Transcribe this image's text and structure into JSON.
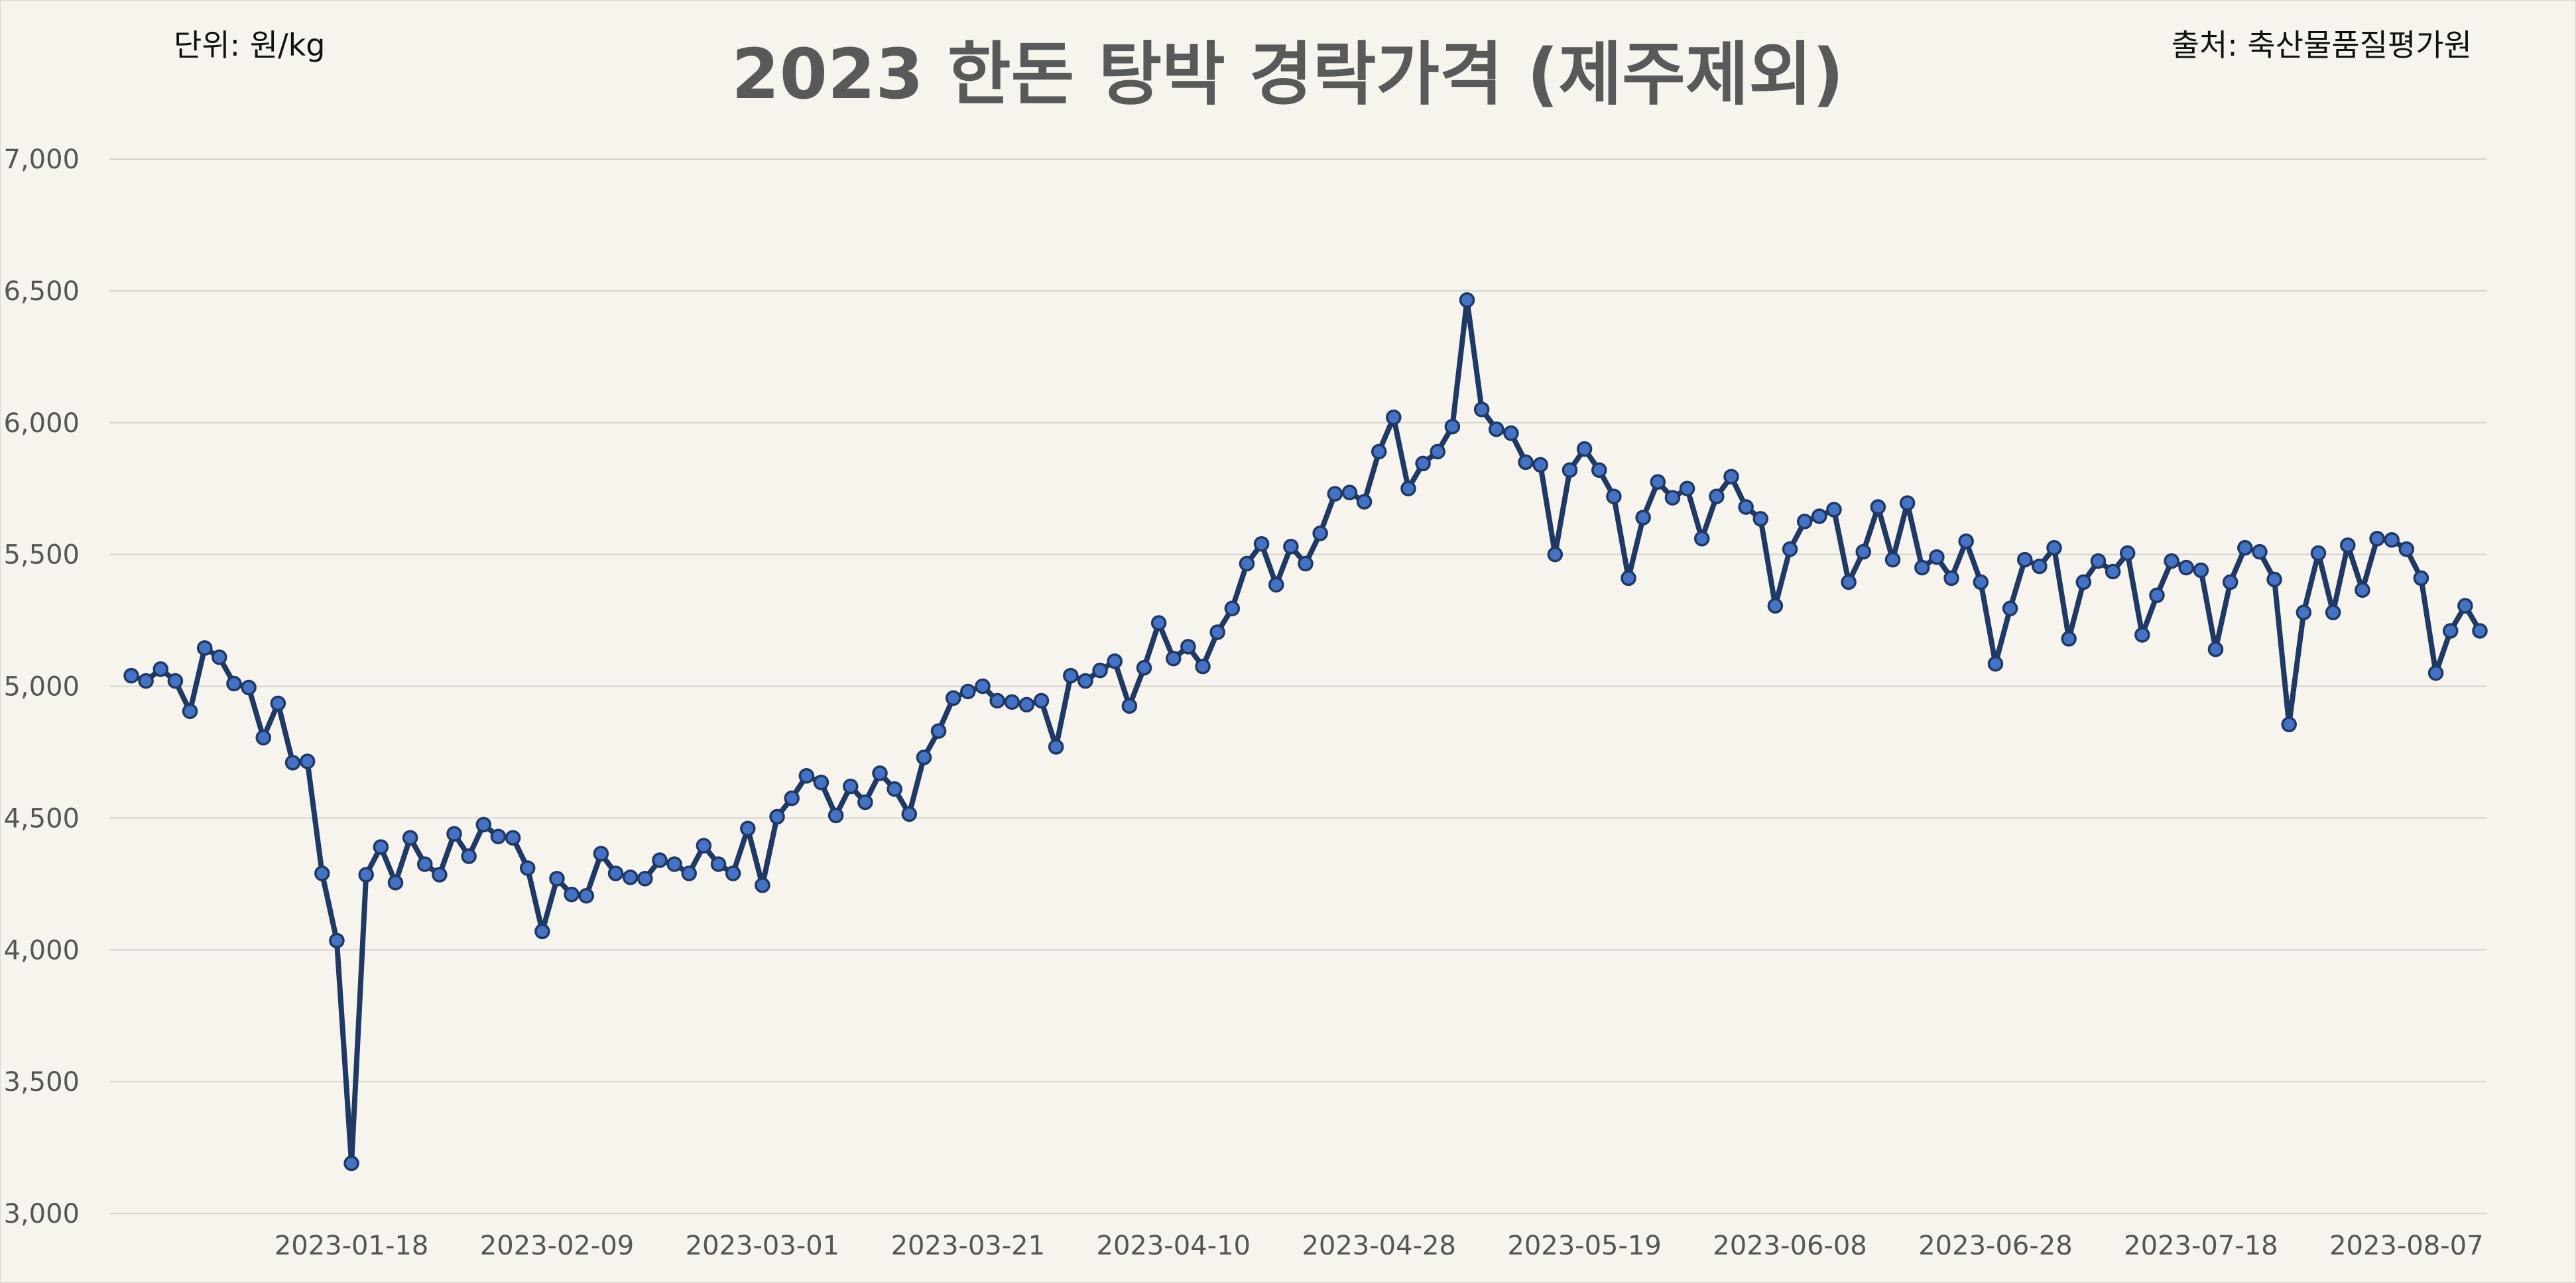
{
  "chart_data": {
    "type": "line",
    "title": "2023 한돈 탕박 경락가격 (제주제외)",
    "unit_note": "단위: 원/kg",
    "source_note": "출처: 축산물품질평가원",
    "xlabel": "",
    "ylabel": "",
    "ylim": [
      3000,
      7000
    ],
    "y_ticks": [
      "3,000",
      "3,500",
      "4,000",
      "4,500",
      "5,000",
      "5,500",
      "6,000",
      "6,500",
      "7,000"
    ],
    "x_ticks": [
      {
        "label": "2023-01-18",
        "index": 15
      },
      {
        "label": "2023-02-09",
        "index": 29
      },
      {
        "label": "2023-03-01",
        "index": 43
      },
      {
        "label": "2023-03-21",
        "index": 57
      },
      {
        "label": "2023-04-10",
        "index": 71
      },
      {
        "label": "2023-04-28",
        "index": 85
      },
      {
        "label": "2023-05-19",
        "index": 99
      },
      {
        "label": "2023-06-08",
        "index": 113
      },
      {
        "label": "2023-06-28",
        "index": 127
      },
      {
        "label": "2023-07-18",
        "index": 141
      },
      {
        "label": "2023-08-07",
        "index": 155
      }
    ],
    "grid": true,
    "legend": "none",
    "colors": {
      "line": "#1f3864",
      "marker_fill": "#4472c4",
      "marker_edge": "#1f3864",
      "background": "#f7f4ee",
      "grid": "#d6d3cd"
    },
    "series": [
      {
        "values": [
          5040,
          5020,
          5065,
          5020,
          4905,
          5145,
          5110,
          5010,
          4995,
          4805,
          4935,
          4710,
          4715,
          4290,
          4035,
          3190,
          4285,
          4390,
          4255,
          4425,
          4325,
          4285,
          4440,
          4355,
          4475,
          4430,
          4425,
          4310,
          4070,
          4270,
          4210,
          4205,
          4365,
          4290,
          4275,
          4270,
          4340,
          4325,
          4290,
          4395,
          4325,
          4290,
          4460,
          4245,
          4505,
          4575,
          4660,
          4635,
          4510,
          4620,
          4560,
          4670,
          4610,
          4515,
          4730,
          4830,
          4955,
          4980,
          5000,
          4945,
          4940,
          4930,
          4945,
          4770,
          5040,
          5020,
          5060,
          5095,
          4925,
          5070,
          5240,
          5105,
          5150,
          5075,
          5205,
          5295,
          5465,
          5540,
          5385,
          5530,
          5465,
          5580,
          5730,
          5735,
          5700,
          5890,
          6020,
          5750,
          5845,
          5890,
          5985,
          6465,
          6050,
          5975,
          5960,
          5850,
          5840,
          5500,
          5820,
          5900,
          5820,
          5720,
          5410,
          5640,
          5775,
          5715,
          5750,
          5560,
          5720,
          5795,
          5680,
          5635,
          5305,
          5520,
          5625,
          5645,
          5670,
          5395,
          5510,
          5680,
          5480,
          5695,
          5450,
          5490,
          5410,
          5550,
          5395,
          5085,
          5295,
          5480,
          5455,
          5525,
          5180,
          5395,
          5475,
          5435,
          5505,
          5195,
          5345,
          5475,
          5450,
          5440,
          5140,
          5395,
          5525,
          5510,
          5405,
          4855,
          5280,
          5505,
          5280,
          5535,
          5365,
          5560,
          5555,
          5520,
          5410,
          5050,
          5210,
          5305,
          5210
        ]
      }
    ]
  }
}
